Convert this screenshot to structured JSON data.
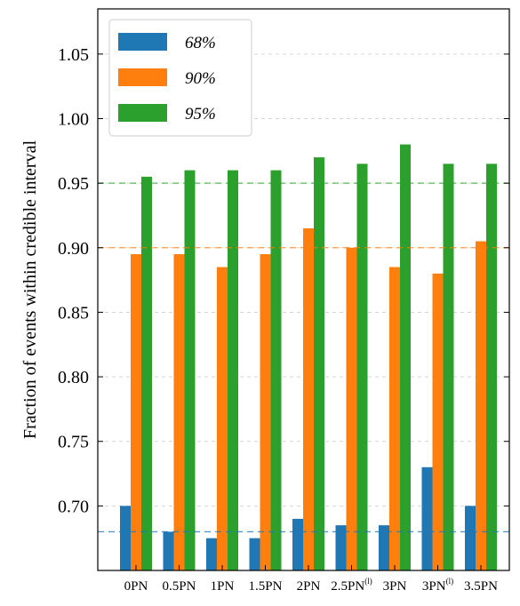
{
  "chart_data": {
    "type": "bar",
    "ylabel": "Fraction of events within credible interval",
    "xlabel": "",
    "ylim": [
      0.65,
      1.085
    ],
    "yticks": [
      0.7,
      0.75,
      0.8,
      0.85,
      0.9,
      0.95,
      1.0,
      1.05
    ],
    "ytick_labels": [
      "0.70",
      "0.75",
      "0.80",
      "0.85",
      "0.90",
      "0.95",
      "1.00",
      "1.05"
    ],
    "categories": [
      "0PN",
      "0.5PN",
      "1PN",
      "1.5PN",
      "2PN",
      "2.5PN",
      "3PN",
      "3PN",
      "3.5PN"
    ],
    "category_superscripts": [
      "",
      "",
      "",
      "",
      "",
      "(l)",
      "",
      "(l)",
      ""
    ],
    "grid": "horizontal dashed",
    "legend_position": "top-left",
    "series": [
      {
        "name": "68%",
        "color": "#1f77b4",
        "values": [
          0.7,
          0.68,
          0.675,
          0.675,
          0.69,
          0.685,
          0.685,
          0.73,
          0.7
        ],
        "reference": 0.68
      },
      {
        "name": "90%",
        "color": "#ff7f0e",
        "values": [
          0.895,
          0.895,
          0.885,
          0.895,
          0.915,
          0.9,
          0.885,
          0.88,
          0.905
        ],
        "reference": 0.9
      },
      {
        "name": "95%",
        "color": "#2ca02c",
        "values": [
          0.955,
          0.96,
          0.96,
          0.96,
          0.97,
          0.965,
          0.98,
          0.965,
          0.965
        ],
        "reference": 0.95
      }
    ]
  }
}
